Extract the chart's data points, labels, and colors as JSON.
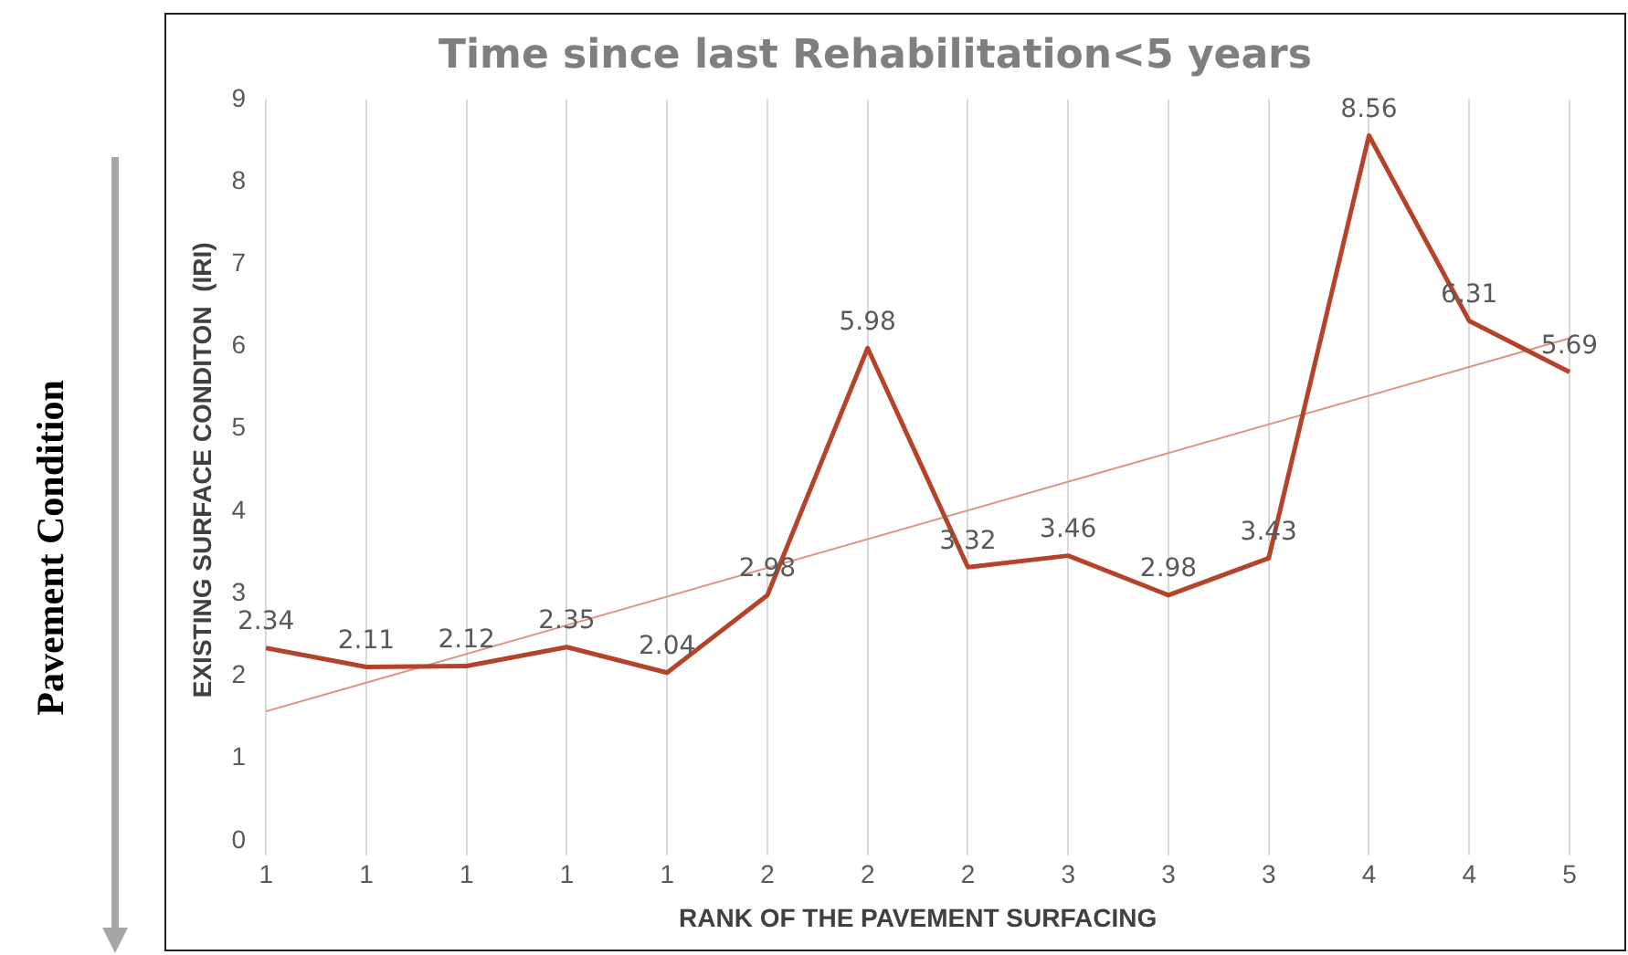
{
  "chart_data": {
    "type": "line",
    "title": "Time since last Rehabilitation<5 years",
    "xlabel": "RANK OF THE PAVEMENT SURFACING",
    "ylabel": "EXISTING SURFACE CONDITON  (IRI)",
    "categories": [
      "1",
      "1",
      "1",
      "1",
      "1",
      "2",
      "2",
      "2",
      "3",
      "3",
      "3",
      "4",
      "4",
      "5"
    ],
    "series": [
      {
        "color": "#b5432a",
        "values": [
          2.34,
          2.11,
          2.12,
          2.35,
          2.04,
          2.98,
          5.98,
          3.32,
          3.46,
          2.98,
          3.43,
          8.56,
          6.31,
          5.69
        ],
        "data_labels": true
      },
      {
        "type": "line",
        "color": "#d9957e",
        "values": [
          1.57,
          null,
          null,
          null,
          null,
          null,
          null,
          null,
          null,
          null,
          null,
          null,
          null,
          6.1
        ]
      }
    ],
    "ylim": [
      0,
      9
    ],
    "yticks": [
      0,
      1,
      2,
      3,
      4,
      5,
      6,
      7,
      8,
      9
    ],
    "grid": "x",
    "legend": false,
    "marker": "none",
    "line_style": "solid",
    "annotations": [
      "Pavement Condition"
    ]
  }
}
